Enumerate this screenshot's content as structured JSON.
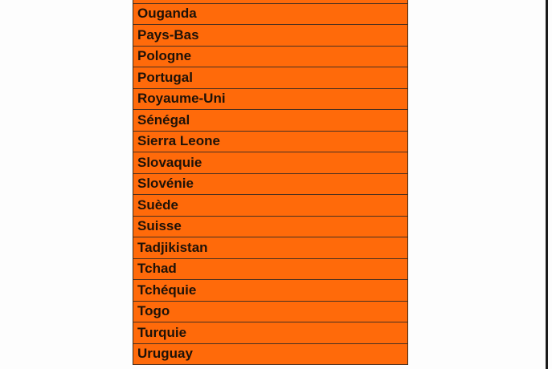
{
  "colors": {
    "cell_fill": "#ff6a0a",
    "text": "#1e1208",
    "border": "#4a3020"
  },
  "countries": [
    "",
    "Ouganda",
    "Pays-Bas",
    "Pologne",
    "Portugal",
    "Royaume-Uni",
    "Sénégal",
    "Sierra Leone",
    "Slovaquie",
    "Slovénie",
    "Suède",
    "Suisse",
    "Tadjikistan",
    "Tchad",
    "Tchéquie",
    "Togo",
    "Turquie",
    "Uruguay"
  ]
}
